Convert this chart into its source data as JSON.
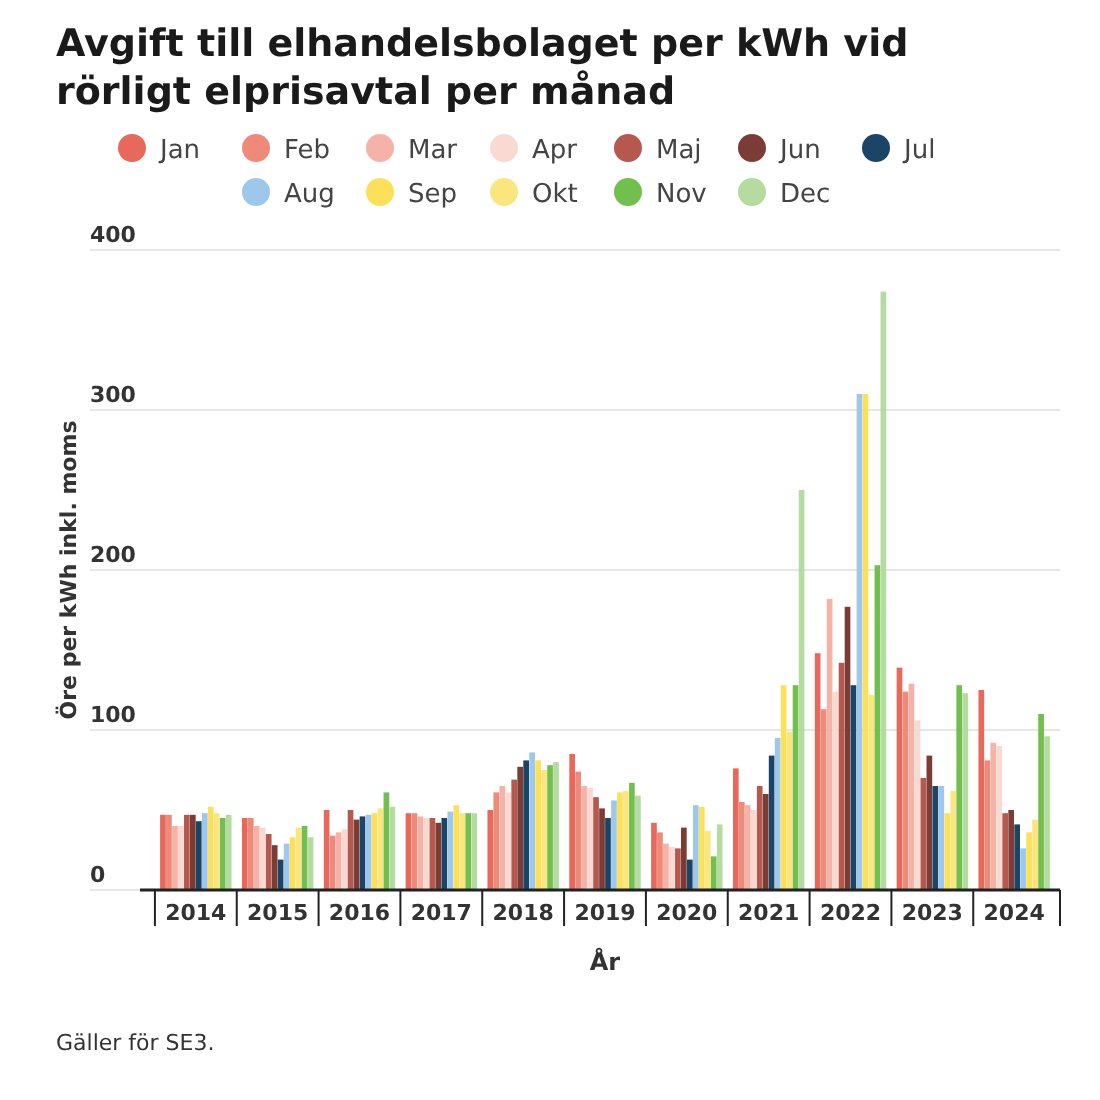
{
  "chart_data": {
    "type": "bar",
    "title": "Avgift till elhandelsbolaget per kWh vid rörligt elprisavtal per månad",
    "xlabel": "År",
    "ylabel": "Öre per kWh inkl. moms",
    "categories": [
      "2014",
      "2015",
      "2016",
      "2017",
      "2018",
      "2019",
      "2020",
      "2021",
      "2022",
      "2023",
      "2024"
    ],
    "series": [
      {
        "name": "Jan",
        "color": "#e8695c",
        "values": [
          47,
          45,
          50,
          48,
          50,
          85,
          42,
          76,
          148,
          139,
          125
        ]
      },
      {
        "name": "Feb",
        "color": "#ee8a78",
        "values": [
          47,
          45,
          34,
          48,
          61,
          74,
          36,
          55,
          113,
          124,
          81
        ]
      },
      {
        "name": "Mar",
        "color": "#f5b3a8",
        "values": [
          40,
          40,
          36,
          46,
          65,
          65,
          29,
          53,
          182,
          129,
          92
        ]
      },
      {
        "name": "Apr",
        "color": "#fbd9d3",
        "values": [
          40,
          39,
          38,
          45,
          61,
          64,
          27,
          50,
          124,
          106,
          90
        ]
      },
      {
        "name": "Maj",
        "color": "#b5594e",
        "values": [
          47,
          35,
          50,
          45,
          69,
          58,
          26,
          65,
          142,
          70,
          48
        ]
      },
      {
        "name": "Jun",
        "color": "#7a3c35",
        "values": [
          47,
          28,
          44,
          42,
          77,
          51,
          39,
          60,
          177,
          84,
          50
        ]
      },
      {
        "name": "Jul",
        "color": "#1a4566",
        "values": [
          43,
          19,
          46,
          45,
          81,
          45,
          19,
          84,
          128,
          65,
          41
        ]
      },
      {
        "name": "Aug",
        "color": "#9dc8ec",
        "values": [
          48,
          29,
          47,
          49,
          86,
          56,
          53,
          95,
          310,
          65,
          26
        ]
      },
      {
        "name": "Sep",
        "color": "#fde05a",
        "values": [
          52,
          33,
          48,
          53,
          81,
          61,
          52,
          128,
          310,
          48,
          36
        ]
      },
      {
        "name": "Okt",
        "color": "#fbe57f",
        "values": [
          48,
          39,
          51,
          48,
          75,
          62,
          37,
          99,
          122,
          62,
          44
        ]
      },
      {
        "name": "Nov",
        "color": "#71bf4f",
        "values": [
          45,
          40,
          61,
          48,
          78,
          67,
          21,
          128,
          203,
          128,
          110
        ]
      },
      {
        "name": "Dec",
        "color": "#b4dca0",
        "values": [
          47,
          33,
          52,
          48,
          80,
          59,
          41,
          250,
          374,
          123,
          96
        ]
      }
    ],
    "ylim": [
      0,
      400
    ],
    "yticks": [
      0,
      100,
      200,
      300,
      400
    ],
    "grid": "y",
    "legend": "top",
    "annotations": [
      "Gäller för SE3."
    ]
  }
}
